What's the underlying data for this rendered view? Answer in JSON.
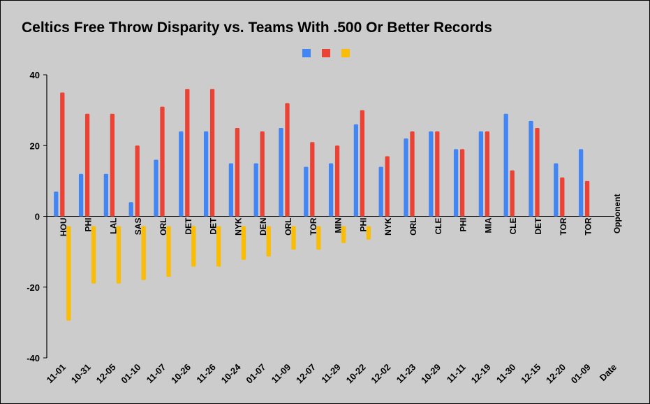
{
  "title": "Celtics Free Throw Disparity vs. Teams With .500 Or Better Records",
  "chart_data": {
    "type": "bar",
    "title": "Celtics Free Throw Disparity vs. Teams With .500 Or Better Records",
    "xlabel": "Date",
    "opponent_label": "Opponent",
    "ylim": [
      -40,
      40
    ],
    "yticks": [
      40,
      20,
      0,
      -20,
      -40
    ],
    "grid": false,
    "legend": "top-center",
    "categories": [
      "11-01",
      "10-31",
      "12-05",
      "01-10",
      "11-07",
      "10-26",
      "11-26",
      "10-24",
      "01-07",
      "11-09",
      "12-07",
      "11-29",
      "10-22",
      "12-02",
      "11-23",
      "10-29",
      "11-11",
      "12-19",
      "11-30",
      "12-15",
      "12-20",
      "01-09"
    ],
    "opponents": [
      "HOU",
      "PHI",
      "LAL",
      "SAS",
      "ORL",
      "DET",
      "DET",
      "NYK",
      "DEN",
      "ORL",
      "TOR",
      "MIN",
      "PHI",
      "NYK",
      "ORL",
      "CLE",
      "PHI",
      "MIA",
      "CLE",
      "DET",
      "TOR",
      "TOR"
    ],
    "series": [
      {
        "color": "#4285f4",
        "values": [
          7,
          12,
          12,
          4,
          16,
          24,
          24,
          15,
          15,
          25,
          14,
          15,
          26,
          14,
          22,
          24,
          19,
          24,
          29,
          27,
          15,
          19
        ]
      },
      {
        "color": "#ea4335",
        "values": [
          35,
          29,
          29,
          20,
          31,
          36,
          36,
          25,
          24,
          32,
          21,
          20,
          30,
          17,
          24,
          24,
          19,
          24,
          13,
          25,
          11,
          10
        ]
      },
      {
        "color": "#fbbc04",
        "values": [
          -28,
          -17,
          -17,
          -16,
          -15,
          -12,
          -12,
          -10,
          -9,
          -7,
          -7,
          -5,
          -4,
          0,
          0,
          0,
          0,
          0,
          0,
          0,
          0,
          0
        ]
      }
    ]
  }
}
